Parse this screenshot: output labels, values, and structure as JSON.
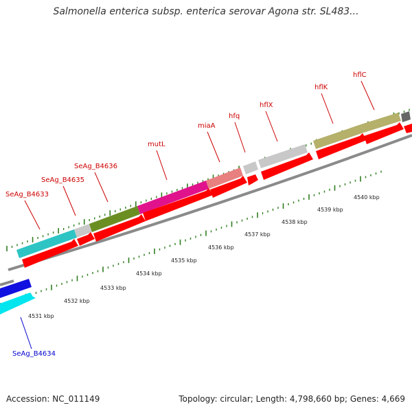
{
  "title": "Salmonella enterica subsp. enterica serovar Agona str. SL483...",
  "accession": "Accession: NC_011149",
  "stats": "Topology: circular; Length: 4,798,660 bp; Genes: 4,669",
  "colors": {
    "label_red": "#cc0000",
    "label_blue": "#0000cc",
    "arrow_red": "#ff0000",
    "tick_green": "#2e7d1e",
    "backbone": "#8a8a8a"
  },
  "kbp_labels": [
    "4531 kbp",
    "4532 kbp",
    "4533 kbp",
    "4534 kbp",
    "4535 kbp",
    "4536 kbp",
    "4537 kbp",
    "4538 kbp",
    "4539 kbp",
    "4540 kbp"
  ],
  "genes": [
    {
      "name": "SeAg_B4633",
      "color": "#2ec4c4",
      "strand": "upper"
    },
    {
      "name": "SeAg_B4635",
      "color": "#c8c8c8",
      "strand": "upper"
    },
    {
      "name": "SeAg_B4636",
      "color": "#6b8e23",
      "strand": "upper"
    },
    {
      "name": "mutL",
      "color": "#e0138c",
      "strand": "upper"
    },
    {
      "name": "miaA",
      "color": "#e88080",
      "strand": "upper"
    },
    {
      "name": "hfq",
      "color": "#c8c8c8",
      "strand": "upper"
    },
    {
      "name": "hflX",
      "color": "#c8c8c8",
      "strand": "upper"
    },
    {
      "name": "hflK",
      "color": "#b5b06a",
      "strand": "upper"
    },
    {
      "name": "hflC",
      "color": "#b5b06a",
      "strand": "upper"
    },
    {
      "name": "SeAg_B4634",
      "color": "#00e5ee",
      "strand": "lower"
    }
  ]
}
